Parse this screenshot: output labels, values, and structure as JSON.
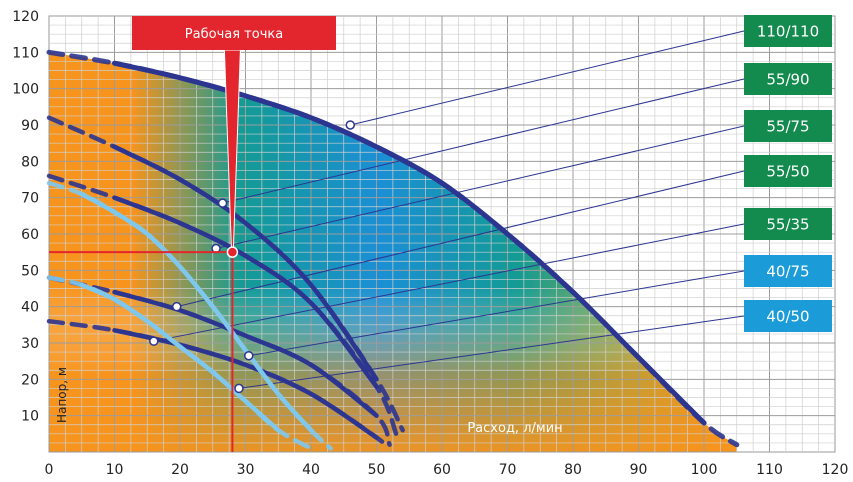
{
  "chart_data": {
    "type": "line",
    "title": "",
    "xlabel": "Расход, л/мин",
    "ylabel": "Напор, м",
    "xlim": [
      0,
      120
    ],
    "ylim": [
      0,
      120
    ],
    "x_ticks": [
      0,
      10,
      20,
      30,
      40,
      50,
      60,
      70,
      80,
      90,
      100,
      110,
      120
    ],
    "y_ticks": [
      10,
      20,
      30,
      40,
      50,
      60,
      70,
      80,
      90,
      100,
      110,
      120
    ],
    "grid": true,
    "colors": {
      "dark_curve": "#2c3590",
      "light_curve": "#7ec8ee",
      "green_label": "#138a4e",
      "blue_label": "#1b9bd8",
      "working_point": "#e3262e",
      "area_blue": "#1b8fd6",
      "area_orange": "#f7941d"
    },
    "series": [
      {
        "name": "110/110",
        "color": "dark",
        "x": [
          0,
          10,
          20,
          30,
          40,
          50,
          60,
          70,
          80,
          90,
          100,
          105
        ],
        "y": [
          110,
          107,
          103,
          98,
          92,
          84,
          74,
          60,
          44,
          26,
          8,
          2
        ],
        "marker": {
          "x": 46,
          "y": 90
        }
      },
      {
        "name": "55/90",
        "color": "dark",
        "x": [
          0,
          10,
          20,
          30,
          40,
          50,
          54
        ],
        "y": [
          92,
          84,
          75,
          63,
          46,
          20,
          6
        ],
        "marker": {
          "x": 26.5,
          "y": 68.5
        }
      },
      {
        "name": "55/75",
        "color": "dark",
        "x": [
          0,
          10,
          20,
          30,
          40,
          50,
          53
        ],
        "y": [
          76,
          70,
          63,
          54,
          41,
          18,
          5
        ],
        "marker": {
          "x": 25.5,
          "y": 56
        }
      },
      {
        "name": "55/50",
        "color": "dark",
        "x": [
          0,
          10,
          20,
          30,
          40,
          50,
          52
        ],
        "y": [
          48,
          44,
          39,
          32,
          24,
          10,
          2
        ],
        "marker": {
          "x": 19.5,
          "y": 40
        }
      },
      {
        "name": "55/35",
        "color": "dark",
        "x": [
          0,
          10,
          20,
          30,
          40,
          50,
          51
        ],
        "y": [
          36,
          33.5,
          29.5,
          24,
          16,
          4,
          2
        ],
        "marker": {
          "x": 16,
          "y": 30.5
        }
      },
      {
        "name": "40/75",
        "color": "light",
        "x": [
          0,
          5,
          10,
          15,
          20,
          25,
          30,
          35,
          40,
          43
        ],
        "y": [
          74,
          71,
          66,
          60,
          51,
          40,
          28,
          16,
          6,
          1
        ],
        "marker": {
          "x": 30.5,
          "y": 26.5
        }
      },
      {
        "name": "40/50",
        "color": "light",
        "x": [
          0,
          5,
          10,
          15,
          20,
          25,
          30,
          35,
          40
        ],
        "y": [
          48,
          46,
          42,
          36,
          29,
          22,
          14,
          6,
          1
        ],
        "marker": {
          "x": 29,
          "y": 17.5
        }
      }
    ],
    "working_point": {
      "label": "Рабочая точка",
      "x": 28,
      "y": 55
    }
  }
}
